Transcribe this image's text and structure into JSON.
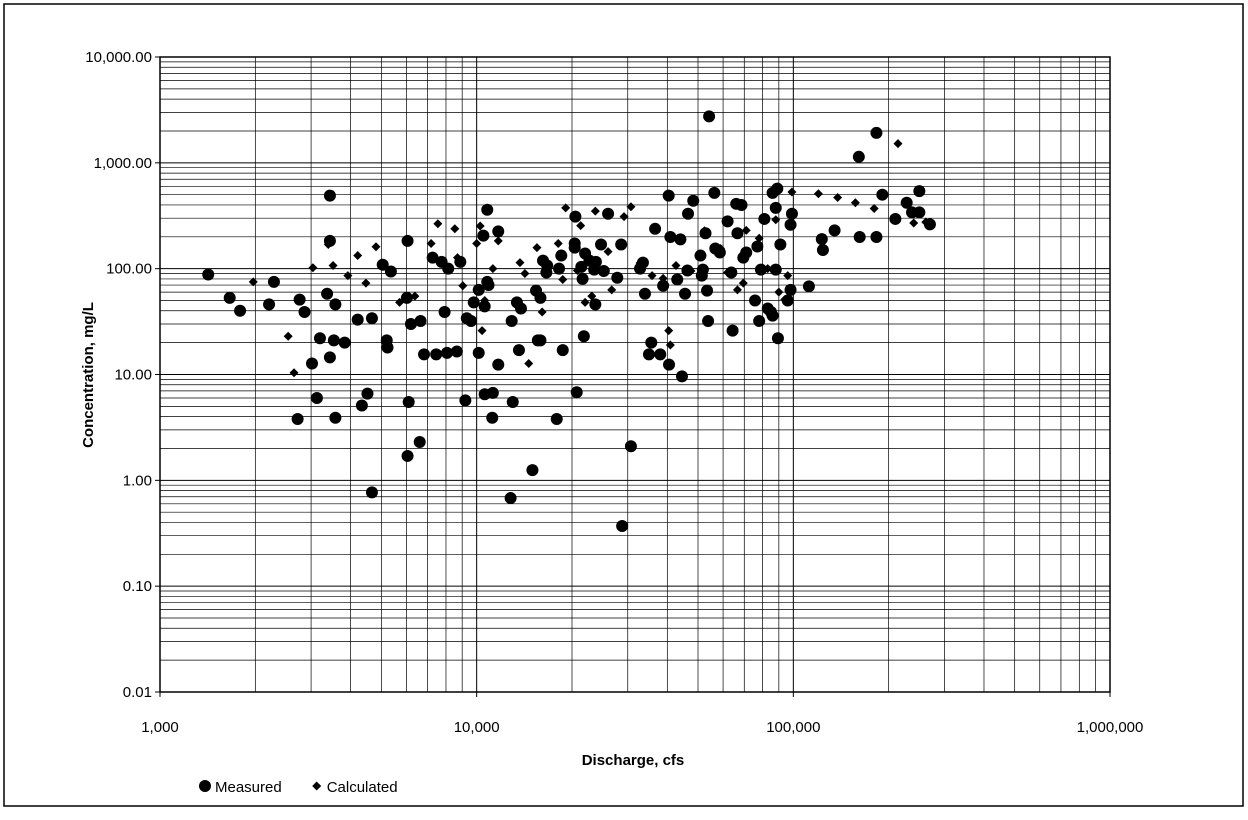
{
  "chart_data": {
    "type": "scatter",
    "x_label": "Discharge, cfs",
    "y_label": "Concentration, mg/L",
    "x_log": true,
    "y_log": true,
    "grid": true,
    "minor_grid": true,
    "legend": "bottom-left",
    "xlim": [
      1000,
      1000000
    ],
    "ylim": [
      0.01,
      10000
    ],
    "xticks": [
      {
        "value": 1000,
        "label": "1,000"
      },
      {
        "value": 10000,
        "label": "10,000"
      },
      {
        "value": 100000,
        "label": "100,000"
      },
      {
        "value": 1000000,
        "label": "1,000,000"
      }
    ],
    "yticks": [
      {
        "value": 0.01,
        "label": "0.01"
      },
      {
        "value": 0.1,
        "label": "0.10"
      },
      {
        "value": 1,
        "label": "1.00"
      },
      {
        "value": 10,
        "label": "10.00"
      },
      {
        "value": 100,
        "label": "100.00"
      },
      {
        "value": 1000,
        "label": "1,000.00"
      },
      {
        "value": 10000,
        "label": "10,000.00"
      }
    ],
    "series": [
      {
        "name": "Measured",
        "color": "#000000",
        "marker": "circle",
        "x": [
          1420,
          1660,
          1790,
          2210,
          2290,
          2760,
          2860,
          2720,
          3020,
          3130,
          3200,
          3370,
          3440,
          3440,
          3440,
          3540,
          3580,
          3580,
          3830,
          4210,
          4340,
          4670,
          4670,
          4520,
          5050,
          5200,
          5230,
          5360,
          6020,
          6100,
          6050,
          6050,
          6200,
          6610,
          6650,
          6820,
          7260,
          7450,
          7750,
          8060,
          7920,
          8130,
          8660,
          8880,
          9210,
          9310,
          9790,
          9600,
          10150,
          10150,
          10500,
          10600,
          10600,
          10800,
          10800,
          10900,
          11200,
          11250,
          11700,
          11700,
          12800,
          12900,
          13000,
          13400,
          13600,
          13800,
          15000,
          15400,
          15600,
          15900,
          15900,
          16200,
          16600,
          16700,
          17900,
          18700,
          18200,
          18500,
          20400,
          20400,
          20700,
          20500,
          21600,
          21400,
          22000,
          22700,
          21800,
          23800,
          23500,
          24700,
          23700,
          25200,
          26000,
          27800,
          28600,
          28800,
          30700,
          32800,
          33500,
          34000,
          35000,
          35600,
          36600,
          38000,
          38800,
          40400,
          40500,
          40900,
          43000,
          44000,
          44500,
          45500,
          46300,
          46500,
          48300,
          50900,
          51800,
          51400,
          52800,
          53400,
          53800,
          54200,
          56700,
          56300,
          58600,
          62000,
          63700,
          64300,
          66000,
          66600,
          68600,
          69500,
          71000,
          75700,
          77000,
          78000,
          79000,
          81000,
          83000,
          85000,
          86000,
          86000,
          88000,
          89000,
          88000,
          91000,
          89400,
          96000,
          98000,
          98000,
          99000,
          112000,
          123000,
          124000,
          135000,
          161000,
          162000,
          183000,
          183000,
          191000,
          210000,
          228000,
          237000,
          250000,
          250000,
          270000
        ],
        "values": [
          88,
          53,
          40,
          46,
          75,
          51,
          39,
          3.8,
          12.7,
          6,
          22,
          58,
          183,
          490,
          14.5,
          21,
          46,
          3.9,
          20,
          33,
          5.1,
          0.77,
          34,
          6.6,
          109,
          21,
          18,
          94,
          53,
          5.5,
          183,
          1.7,
          30,
          2.3,
          32,
          15.5,
          127,
          15.5,
          116,
          16,
          39,
          100,
          16.5,
          116,
          5.7,
          34,
          48,
          32,
          16,
          63,
          205,
          44,
          6.5,
          75,
          360,
          70,
          3.9,
          6.7,
          12.4,
          225,
          0.68,
          32,
          5.5,
          48,
          17,
          42,
          1.25,
          62,
          21,
          53,
          21,
          119,
          92,
          107,
          3.8,
          17,
          100,
          133,
          158,
          173,
          6.8,
          310,
          80,
          104,
          139,
          119,
          23,
          116,
          98,
          169,
          46,
          95,
          330,
          82,
          169,
          0.37,
          2.1,
          100,
          114,
          58,
          15.5,
          20,
          238,
          15.5,
          69,
          490,
          12.4,
          199,
          79,
          189,
          9.6,
          58,
          96,
          330,
          438,
          133,
          98,
          86,
          216,
          62,
          32,
          2750,
          155,
          520,
          142,
          280,
          92,
          26,
          410,
          216,
          400,
          127,
          142,
          50,
          162,
          32,
          98,
          295,
          42,
          39,
          36,
          520,
          98,
          570,
          375,
          169,
          22,
          50,
          63,
          260,
          330,
          68,
          190,
          150,
          230,
          1140,
          199,
          1920,
          199,
          500,
          295,
          420,
          340,
          340,
          540,
          262
        ]
      },
      {
        "name": "Calculated",
        "color": "#000000",
        "marker": "diamond",
        "x": [
          1970,
          2540,
          2650,
          3040,
          3400,
          3520,
          3920,
          4210,
          4470,
          4810,
          5710,
          6380,
          7180,
          7540,
          7750,
          8530,
          8700,
          9040,
          10000,
          10260,
          10400,
          10600,
          11250,
          11700,
          13700,
          14200,
          14600,
          15500,
          16100,
          18100,
          18700,
          19100,
          20800,
          21300,
          22000,
          23100,
          23700,
          26000,
          26700,
          29200,
          30700,
          32800,
          35800,
          38800,
          40400,
          40900,
          42600,
          47500,
          52400,
          56700,
          58900,
          62000,
          66600,
          69500,
          71000,
          78000,
          83000,
          88000,
          90000,
          94000,
          96000,
          99000,
          120000,
          138000,
          157000,
          180000,
          214000,
          240000,
          262000
        ],
        "values": [
          75,
          23,
          10.4,
          102,
          169,
          107,
          86,
          133,
          73,
          161,
          48,
          55,
          173,
          266,
          116,
          238,
          127,
          69,
          173,
          253,
          26,
          50,
          100,
          183,
          114,
          90,
          12.7,
          158,
          39,
          173,
          79,
          375,
          96,
          255,
          48,
          55,
          350,
          145,
          63,
          310,
          385,
          113,
          86,
          81,
          26,
          19,
          107,
          95,
          228,
          151,
          155,
          92,
          63,
          73,
          230,
          194,
          100,
          290,
          60,
          51,
          86,
          530,
          510,
          470,
          420,
          370,
          1520,
          270,
          275
        ]
      }
    ]
  }
}
